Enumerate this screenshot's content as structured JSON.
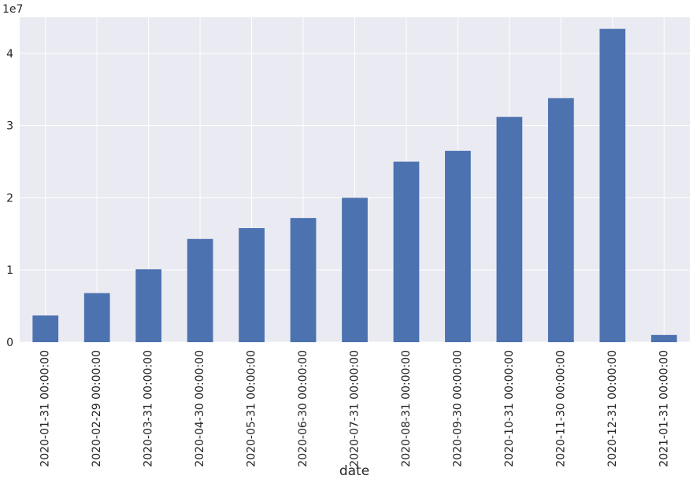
{
  "chart_data": {
    "type": "bar",
    "xlabel": "date",
    "ylabel": "",
    "offset_label": "1e7",
    "categories": [
      "2020-01-31 00:00:00",
      "2020-02-29 00:00:00",
      "2020-03-31 00:00:00",
      "2020-04-30 00:00:00",
      "2020-05-31 00:00:00",
      "2020-06-30 00:00:00",
      "2020-07-31 00:00:00",
      "2020-08-31 00:00:00",
      "2020-09-30 00:00:00",
      "2020-10-31 00:00:00",
      "2020-11-30 00:00:00",
      "2020-12-31 00:00:00",
      "2021-01-31 00:00:00"
    ],
    "values": [
      3700000,
      6800000,
      10100000,
      14300000,
      15800000,
      17200000,
      20000000,
      25000000,
      26500000,
      31200000,
      33800000,
      43400000,
      1000000
    ],
    "ylim": [
      0,
      45000000
    ],
    "yticks": [
      0,
      10000000,
      20000000,
      30000000,
      40000000
    ],
    "ytick_labels": [
      "0",
      "1",
      "2",
      "3",
      "4"
    ],
    "grid": true,
    "colors": {
      "bar": "#4c72b0",
      "background": "#eaeaf2",
      "grid": "#ffffff",
      "text": "#262626"
    }
  }
}
